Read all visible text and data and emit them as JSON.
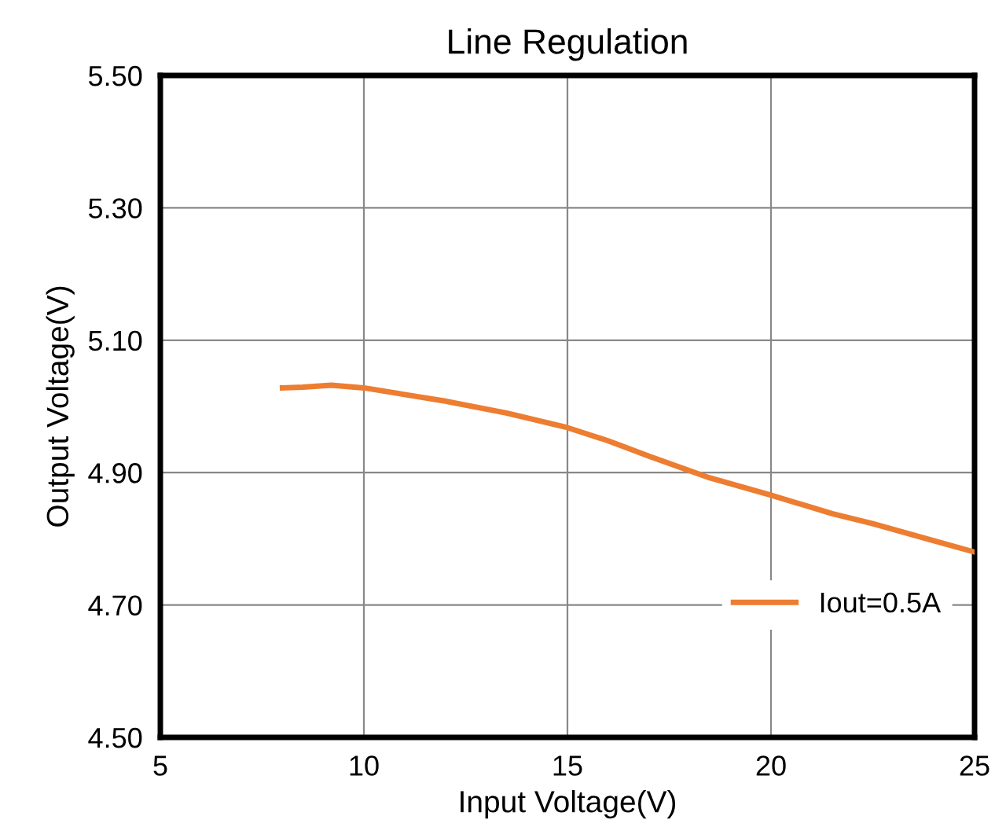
{
  "chart_data": {
    "type": "line",
    "title": "Line Regulation",
    "xlabel": "Input Voltage(V)",
    "ylabel": "Output Voltage(V)",
    "x": [
      8,
      8.5,
      9.2,
      10,
      11,
      12,
      13.5,
      15,
      16,
      17,
      18.5,
      20,
      21.5,
      22.5,
      24,
      25
    ],
    "series": [
      {
        "name": "Iout=0.5A",
        "color": "#ed7d31",
        "values": [
          5.028,
          5.029,
          5.032,
          5.028,
          5.018,
          5.008,
          4.99,
          4.968,
          4.948,
          4.925,
          4.892,
          4.866,
          4.838,
          4.823,
          4.797,
          4.78
        ]
      }
    ],
    "xlim": [
      5,
      25
    ],
    "xticks": [
      5,
      10,
      15,
      20,
      25
    ],
    "ylim": [
      4.5,
      5.5
    ],
    "yticks": [
      {
        "value": 4.5,
        "label": "4.50"
      },
      {
        "value": 4.7,
        "label": "4.70"
      },
      {
        "value": 4.9,
        "label": "4.90"
      },
      {
        "value": 5.1,
        "label": "5.10"
      },
      {
        "value": 5.3,
        "label": "5.30"
      },
      {
        "value": 5.5,
        "label": "5.50"
      }
    ],
    "grid": true,
    "legend": "right",
    "marker": "none",
    "line_style": "solid"
  }
}
